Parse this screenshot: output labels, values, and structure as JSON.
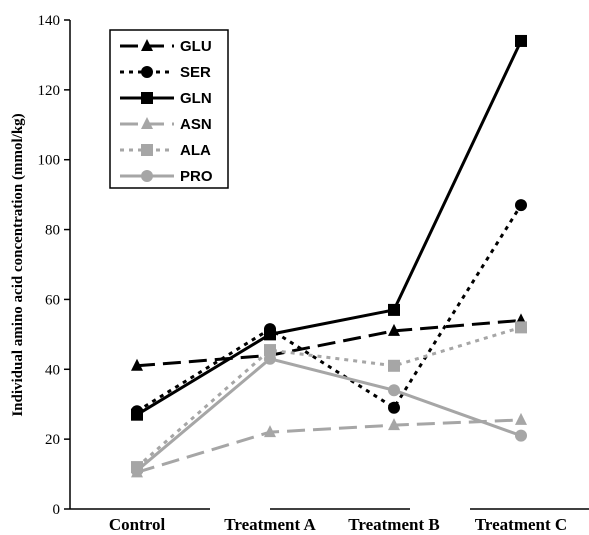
{
  "chart_data": {
    "type": "line",
    "categories": [
      "Control",
      "Treatment A",
      "Treatment B",
      "Treatment C"
    ],
    "ylabel": "Individual amino acid concentration (mmol/kg)",
    "ylim": [
      0,
      140
    ],
    "yticks": [
      0,
      20,
      40,
      60,
      80,
      100,
      120,
      140
    ],
    "grid": false,
    "legend_position": "top-left",
    "series": [
      {
        "name": "GLU",
        "values": [
          41,
          44,
          51,
          54
        ],
        "color": "#000000",
        "dash": "long-dash",
        "marker": "triangle"
      },
      {
        "name": "SER",
        "values": [
          28,
          51.5,
          29,
          87
        ],
        "color": "#000000",
        "dash": "dot",
        "marker": "circle"
      },
      {
        "name": "GLN",
        "values": [
          27,
          50,
          57,
          134
        ],
        "color": "#000000",
        "dash": "solid",
        "marker": "square"
      },
      {
        "name": "ASN",
        "values": [
          10.5,
          22,
          24,
          25.5
        ],
        "color": "#a6a6a6",
        "dash": "long-dash",
        "marker": "triangle"
      },
      {
        "name": "ALA",
        "values": [
          12,
          45.5,
          41,
          52
        ],
        "color": "#a6a6a6",
        "dash": "dot",
        "marker": "square"
      },
      {
        "name": "PRO",
        "values": [
          11,
          43,
          34,
          21
        ],
        "color": "#a6a6a6",
        "dash": "solid",
        "marker": "circle"
      }
    ]
  }
}
